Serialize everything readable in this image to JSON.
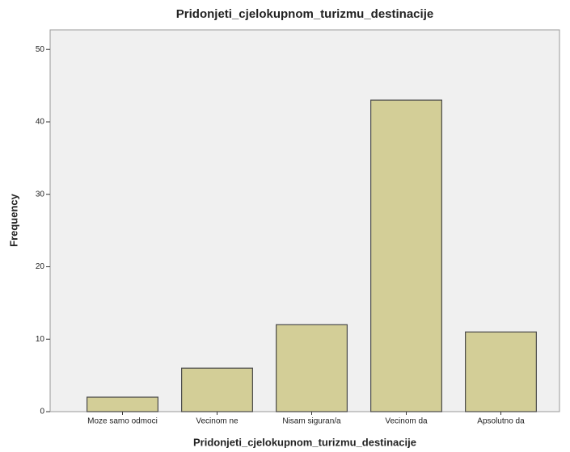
{
  "chart_data": {
    "type": "bar",
    "title": "Pridonjeti_cjelokupnom_turizmu_destinacije",
    "x_label": "Pridonjeti_cjelokupnom_turizmu_destinacije",
    "y_label": "Frequency",
    "categories": [
      "Moze samo odmoci",
      "Vecinom ne",
      "Nisam siguran/a",
      "Vecinom da",
      "Apsolutno da"
    ],
    "values": [
      2,
      6,
      12,
      43,
      11
    ],
    "color": "#d3ce97",
    "ylim": [
      0,
      52.7
    ],
    "yticks": [
      0,
      10,
      20,
      30,
      40,
      50
    ],
    "grid": false
  }
}
